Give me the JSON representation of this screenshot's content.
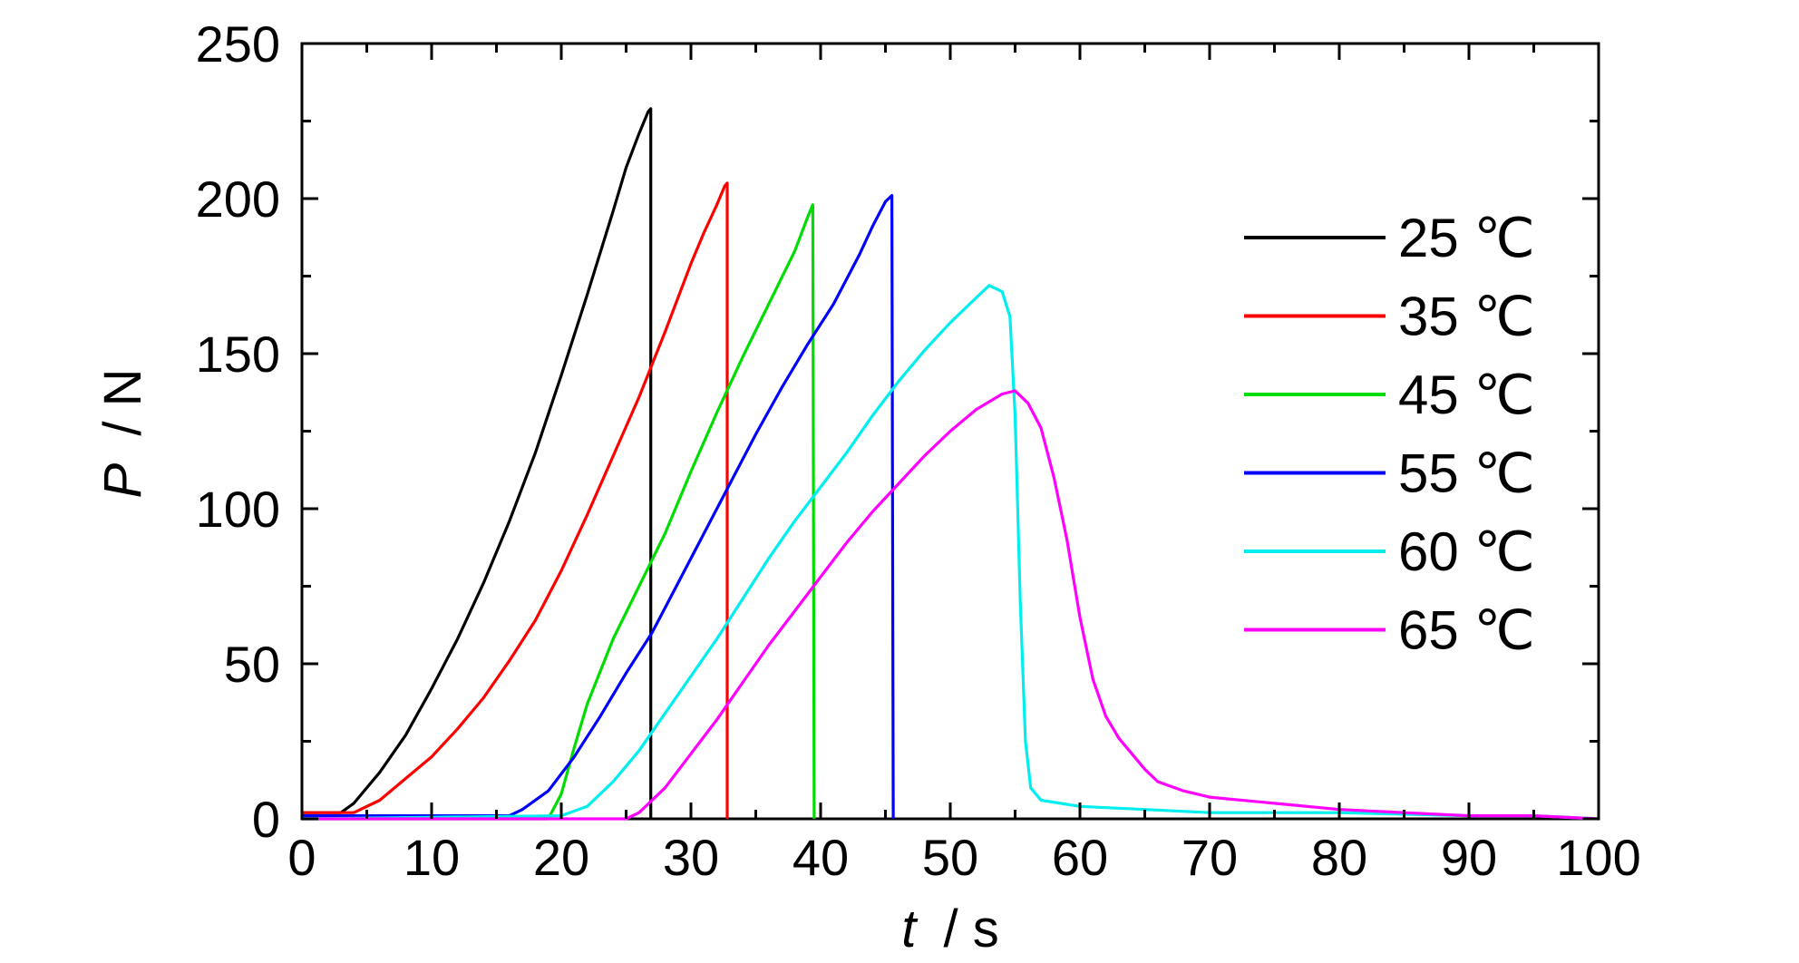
{
  "chart_data": {
    "type": "line",
    "xlabel": {
      "var": "t",
      "unit": "/ s"
    },
    "ylabel": {
      "var": "P",
      "unit": "/ N"
    },
    "xlim": [
      0,
      100
    ],
    "ylim": [
      0,
      250
    ],
    "x_ticks": [
      0,
      10,
      20,
      30,
      40,
      50,
      60,
      70,
      80,
      90,
      100
    ],
    "x_tick_labels": [
      "0",
      "10",
      "20",
      "30",
      "40",
      "50",
      "60",
      "70",
      "80",
      "90",
      "100"
    ],
    "y_ticks": [
      0,
      50,
      100,
      150,
      200,
      250
    ],
    "y_tick_labels": [
      "0",
      "50",
      "100",
      "150",
      "200",
      "250"
    ],
    "grid": false,
    "legend_placement": "right",
    "series": [
      {
        "name": "25 ℃",
        "color": "#000000",
        "points": [
          [
            0,
            2
          ],
          [
            3,
            2
          ],
          [
            4,
            5
          ],
          [
            6,
            15
          ],
          [
            8,
            27
          ],
          [
            10,
            42
          ],
          [
            12,
            58
          ],
          [
            14,
            76
          ],
          [
            16,
            96
          ],
          [
            18,
            118
          ],
          [
            20,
            143
          ],
          [
            22,
            169
          ],
          [
            24,
            196
          ],
          [
            25,
            210
          ],
          [
            26,
            221
          ],
          [
            26.7,
            228
          ],
          [
            26.9,
            229
          ],
          [
            26.9,
            0
          ]
        ]
      },
      {
        "name": "35 ℃",
        "color": "#ff0000",
        "points": [
          [
            0,
            2
          ],
          [
            4,
            2
          ],
          [
            6,
            6
          ],
          [
            8,
            13
          ],
          [
            10,
            20
          ],
          [
            12,
            29
          ],
          [
            14,
            39
          ],
          [
            16,
            51
          ],
          [
            18,
            64
          ],
          [
            20,
            80
          ],
          [
            22,
            98
          ],
          [
            24,
            117
          ],
          [
            26,
            136
          ],
          [
            28,
            157
          ],
          [
            30,
            179
          ],
          [
            31,
            189
          ],
          [
            32,
            198
          ],
          [
            32.6,
            204
          ],
          [
            32.8,
            205
          ],
          [
            32.8,
            0
          ]
        ]
      },
      {
        "name": "45 ℃",
        "color": "#00dd00",
        "points": [
          [
            0,
            0
          ],
          [
            19,
            0
          ],
          [
            20,
            8
          ],
          [
            21,
            23
          ],
          [
            22,
            37
          ],
          [
            24,
            58
          ],
          [
            26,
            75
          ],
          [
            28,
            92
          ],
          [
            30,
            112
          ],
          [
            32,
            131
          ],
          [
            34,
            149
          ],
          [
            36,
            166
          ],
          [
            38,
            183
          ],
          [
            39,
            194
          ],
          [
            39.4,
            198
          ],
          [
            39.5,
            0
          ]
        ]
      },
      {
        "name": "55 ℃",
        "color": "#0000ff",
        "points": [
          [
            0,
            1
          ],
          [
            16,
            1
          ],
          [
            17,
            3
          ],
          [
            19,
            9
          ],
          [
            21,
            20
          ],
          [
            23,
            33
          ],
          [
            25,
            47
          ],
          [
            27,
            60
          ],
          [
            29,
            76
          ],
          [
            31,
            92
          ],
          [
            33,
            108
          ],
          [
            35,
            124
          ],
          [
            37,
            139
          ],
          [
            39,
            153
          ],
          [
            41,
            166
          ],
          [
            43,
            182
          ],
          [
            44,
            191
          ],
          [
            45,
            199
          ],
          [
            45.5,
            201
          ],
          [
            45.6,
            0
          ]
        ]
      },
      {
        "name": "60 ℃",
        "color": "#00eeee",
        "points": [
          [
            0,
            0
          ],
          [
            20,
            1
          ],
          [
            22,
            4
          ],
          [
            24,
            12
          ],
          [
            26,
            22
          ],
          [
            28,
            34
          ],
          [
            30,
            46
          ],
          [
            32,
            58
          ],
          [
            34,
            71
          ],
          [
            36,
            84
          ],
          [
            38,
            96
          ],
          [
            40,
            107
          ],
          [
            42,
            118
          ],
          [
            44,
            130
          ],
          [
            46,
            141
          ],
          [
            48,
            151
          ],
          [
            50,
            160
          ],
          [
            52,
            168
          ],
          [
            53,
            172
          ],
          [
            54,
            170
          ],
          [
            54.6,
            162
          ],
          [
            55,
            130
          ],
          [
            55.4,
            70
          ],
          [
            55.8,
            25
          ],
          [
            56.2,
            10
          ],
          [
            57,
            6
          ],
          [
            60,
            4
          ],
          [
            65,
            3
          ],
          [
            70,
            2
          ],
          [
            80,
            2
          ],
          [
            90,
            1
          ],
          [
            95,
            1
          ],
          [
            100,
            0
          ]
        ]
      },
      {
        "name": "65 ℃",
        "color": "#ff00ff",
        "points": [
          [
            0,
            0
          ],
          [
            25,
            0
          ],
          [
            26,
            2
          ],
          [
            28,
            10
          ],
          [
            30,
            21
          ],
          [
            32,
            32
          ],
          [
            34,
            44
          ],
          [
            36,
            56
          ],
          [
            38,
            67
          ],
          [
            40,
            78
          ],
          [
            42,
            89
          ],
          [
            44,
            99
          ],
          [
            46,
            108
          ],
          [
            48,
            117
          ],
          [
            50,
            125
          ],
          [
            52,
            132
          ],
          [
            54,
            137
          ],
          [
            55,
            138
          ],
          [
            56,
            134
          ],
          [
            57,
            126
          ],
          [
            58,
            110
          ],
          [
            59,
            90
          ],
          [
            60,
            65
          ],
          [
            61,
            45
          ],
          [
            62,
            33
          ],
          [
            63,
            26
          ],
          [
            64,
            21
          ],
          [
            65,
            16
          ],
          [
            66,
            12
          ],
          [
            68,
            9
          ],
          [
            70,
            7
          ],
          [
            75,
            5
          ],
          [
            80,
            3
          ],
          [
            85,
            2
          ],
          [
            90,
            1
          ],
          [
            95,
            1
          ],
          [
            100,
            0
          ]
        ]
      }
    ]
  }
}
